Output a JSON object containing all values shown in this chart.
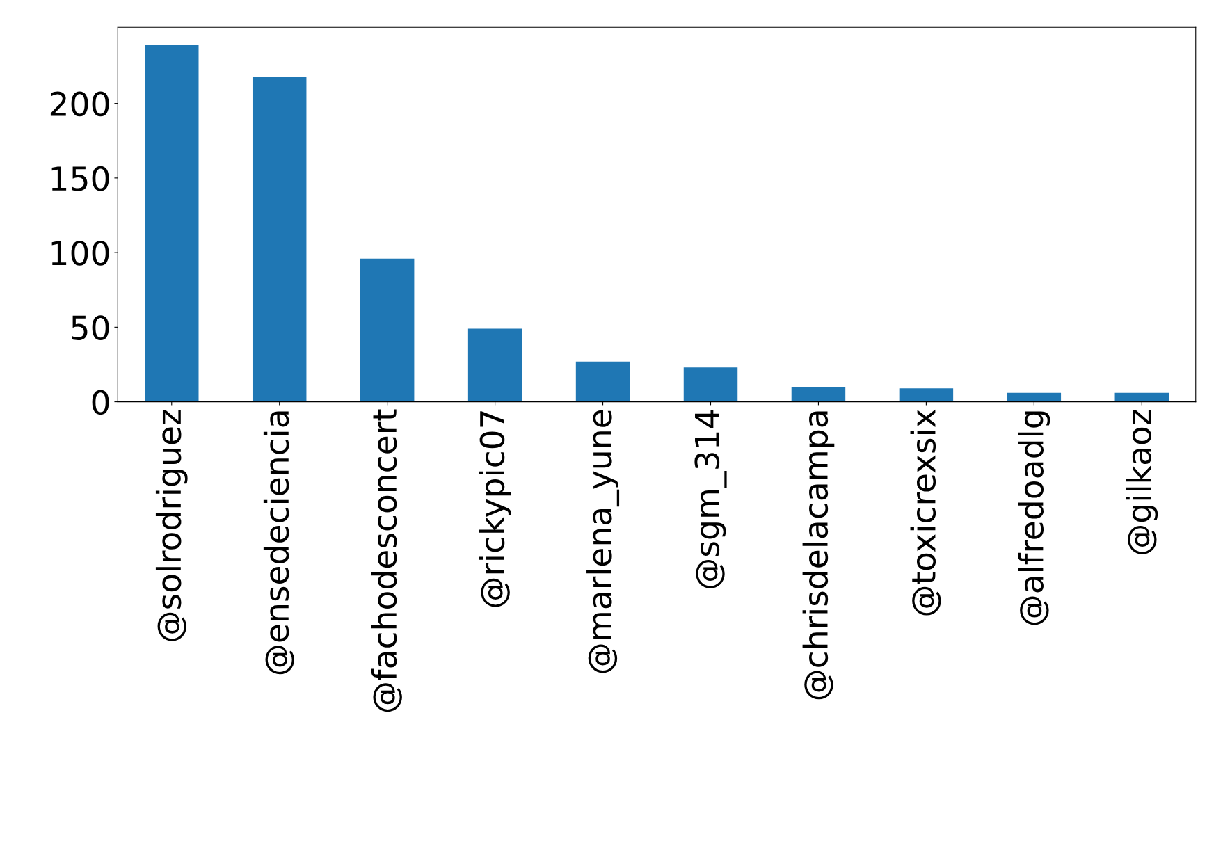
{
  "chart_data": {
    "type": "bar",
    "categories": [
      "@solrodriguez",
      "@ensedeciencia",
      "@fachodesconcert",
      "@rickypic07",
      "@marlena_yune",
      "@sgm_314",
      "@chrisdelacampa",
      "@toxicrexsix",
      "@alfredoadlg",
      "@gilkaoz"
    ],
    "values": [
      239,
      218,
      96,
      49,
      27,
      23,
      10,
      9,
      6,
      6
    ],
    "color": "#1f77b4",
    "ylim": [
      0,
      251
    ],
    "yticks": [
      0,
      50,
      100,
      150,
      200
    ],
    "grid": false,
    "legend": false
  }
}
